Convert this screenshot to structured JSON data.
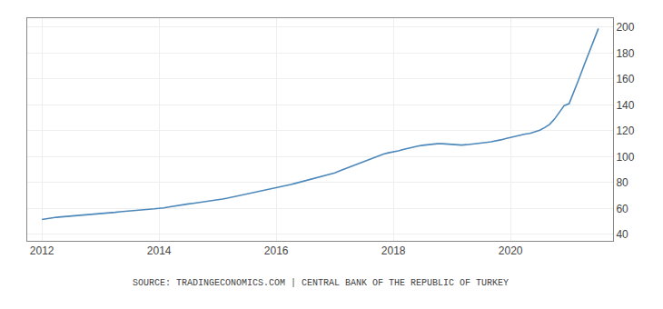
{
  "chart_data": {
    "type": "line",
    "annotations": [
      "SOURCE: TRADINGECONOMICS.COM | CENTRAL BANK OF THE REPUBLIC OF TURKEY"
    ],
    "color": "#4d88bb",
    "grid": true,
    "xlim": [
      2011.75,
      2021.75
    ],
    "ylim": [
      35,
      207
    ],
    "xticks": [
      2012,
      2014,
      2016,
      2018,
      2020
    ],
    "yticks": [
      40,
      60,
      80,
      100,
      120,
      140,
      160,
      180,
      200
    ],
    "x": [
      2012.0,
      2012.083,
      2012.167,
      2012.25,
      2012.333,
      2012.417,
      2012.5,
      2012.583,
      2012.667,
      2012.75,
      2012.833,
      2012.917,
      2013.0,
      2013.083,
      2013.167,
      2013.25,
      2013.333,
      2013.417,
      2013.5,
      2013.583,
      2013.667,
      2013.75,
      2013.833,
      2013.917,
      2014.0,
      2014.083,
      2014.167,
      2014.25,
      2014.333,
      2014.417,
      2014.5,
      2014.583,
      2014.667,
      2014.75,
      2014.833,
      2014.917,
      2015.0,
      2015.083,
      2015.167,
      2015.25,
      2015.333,
      2015.417,
      2015.5,
      2015.583,
      2015.667,
      2015.75,
      2015.833,
      2015.917,
      2016.0,
      2016.083,
      2016.167,
      2016.25,
      2016.333,
      2016.417,
      2016.5,
      2016.583,
      2016.667,
      2016.75,
      2016.833,
      2016.917,
      2017.0,
      2017.083,
      2017.167,
      2017.25,
      2017.333,
      2017.417,
      2017.5,
      2017.583,
      2017.667,
      2017.75,
      2017.833,
      2017.917,
      2018.0,
      2018.083,
      2018.167,
      2018.25,
      2018.333,
      2018.417,
      2018.5,
      2018.583,
      2018.667,
      2018.75,
      2018.833,
      2018.917,
      2019.0,
      2019.083,
      2019.167,
      2019.25,
      2019.333,
      2019.417,
      2019.5,
      2019.583,
      2019.667,
      2019.75,
      2019.833,
      2019.917,
      2020.0,
      2020.083,
      2020.167,
      2020.25,
      2020.333,
      2020.417,
      2020.5,
      2020.583,
      2020.667,
      2020.75,
      2020.833,
      2020.917,
      2021.0,
      2021.083,
      2021.167,
      2021.25,
      2021.333,
      2021.417,
      2021.5
    ],
    "values": [
      51.5,
      52.2,
      52.8,
      53.2,
      53.5,
      53.8,
      54.0,
      54.2,
      54.5,
      54.8,
      55.0,
      55.3,
      55.6,
      56.0,
      56.5,
      57.0,
      57.5,
      57.9,
      58.2,
      58.5,
      58.8,
      59.1,
      59.4,
      59.7,
      60.0,
      60.5,
      61.2,
      61.9,
      62.5,
      63.0,
      63.5,
      64.0,
      64.5,
      65.0,
      65.5,
      66.0,
      66.6,
      67.3,
      68.0,
      68.8,
      69.5,
      70.2,
      71.0,
      71.8,
      72.5,
      73.2,
      74.0,
      74.8,
      75.6,
      76.5,
      77.5,
      78.5,
      79.5,
      80.5,
      81.5,
      82.5,
      83.5,
      84.5,
      85.5,
      86.5,
      87.5,
      89.0,
      90.5,
      92.0,
      93.5,
      95.0,
      96.5,
      98.0,
      99.5,
      101.0,
      102.0,
      103.0,
      103.5,
      104.5,
      105.5,
      106.5,
      107.5,
      108.2,
      108.8,
      109.3,
      109.7,
      110.0,
      110.0,
      109.7,
      109.3,
      109.0,
      109.0,
      109.3,
      109.6,
      110.0,
      110.5,
      111.0,
      111.5,
      112.0,
      113.0,
      114.0,
      115.0,
      116.0,
      117.0,
      117.5,
      118.0,
      119.0,
      120.5,
      122.5,
      125.0,
      129.0,
      134.0,
      139.5,
      141.0,
      150.0,
      160.0,
      170.0,
      180.0,
      190.0,
      199.0
    ]
  }
}
